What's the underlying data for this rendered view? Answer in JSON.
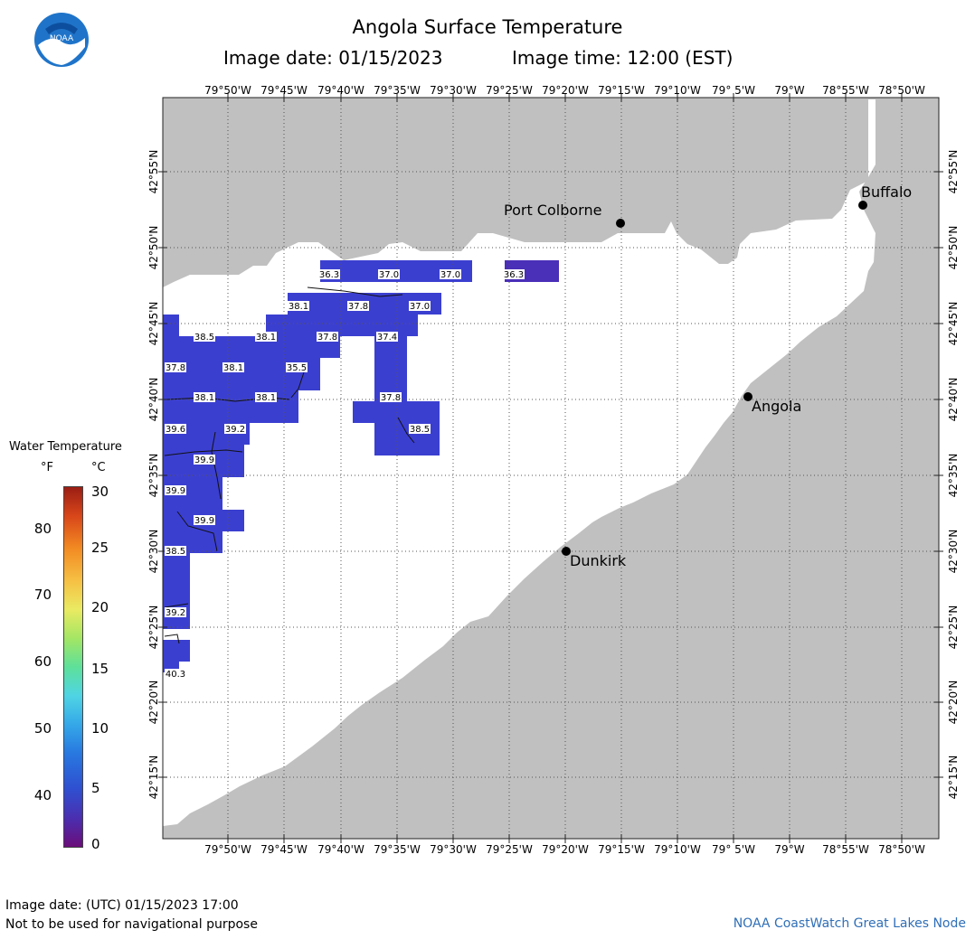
{
  "header": {
    "title": "Angola Surface Temperature",
    "image_date_label": "Image date: 01/15/2023",
    "image_time_label": "Image time: 12:00 (EST)"
  },
  "logo": {
    "text": "NOAA"
  },
  "axes": {
    "lon_ticks": [
      "79°50'W",
      "79°45'W",
      "79°40'W",
      "79°35'W",
      "79°30'W",
      "79°25'W",
      "79°20'W",
      "79°15'W",
      "79°10'W",
      "79° 5'W",
      "79°W",
      "78°55'W",
      "78°50'W"
    ],
    "lat_ticks": [
      "42°55'N",
      "42°50'N",
      "42°45'N",
      "42°40'N",
      "42°35'N",
      "42°30'N",
      "42°25'N",
      "42°20'N",
      "42°15'N"
    ]
  },
  "cities": [
    {
      "name": "Port Colborne"
    },
    {
      "name": "Buffalo"
    },
    {
      "name": "Angola"
    },
    {
      "name": "Dunkirk"
    }
  ],
  "temperature_labels": [
    "36.3",
    "37.0",
    "37.0",
    "36.3",
    "38.1",
    "37.8",
    "37.0",
    "38.5",
    "38.1",
    "37.8",
    "37.4",
    "37.8",
    "38.1",
    "35.5",
    "38.1",
    "38.1",
    "37.8",
    "39.6",
    "39.2",
    "38.5",
    "39.9",
    "39.9",
    "39.9",
    "38.5",
    "39.2",
    "40.3"
  ],
  "legend": {
    "title": "Water Temperature",
    "unit_f": "°F",
    "unit_c": "°C",
    "f_ticks": [
      "80",
      "70",
      "60",
      "50",
      "40"
    ],
    "c_ticks": [
      "30",
      "25",
      "20",
      "15",
      "10",
      "5",
      "0"
    ]
  },
  "footer": {
    "utc_date": "Image date: (UTC) 01/15/2023  17:00",
    "disclaimer": "Not to be used for navigational purpose",
    "credit": "NOAA CoastWatch Great Lakes Node"
  },
  "colors": {
    "land": "#c0c0c0",
    "water": "#ffffff",
    "cold_water": "#3b3fd0",
    "colder_water": "#4a2fb8",
    "credit_text": "#2f6fb8"
  }
}
